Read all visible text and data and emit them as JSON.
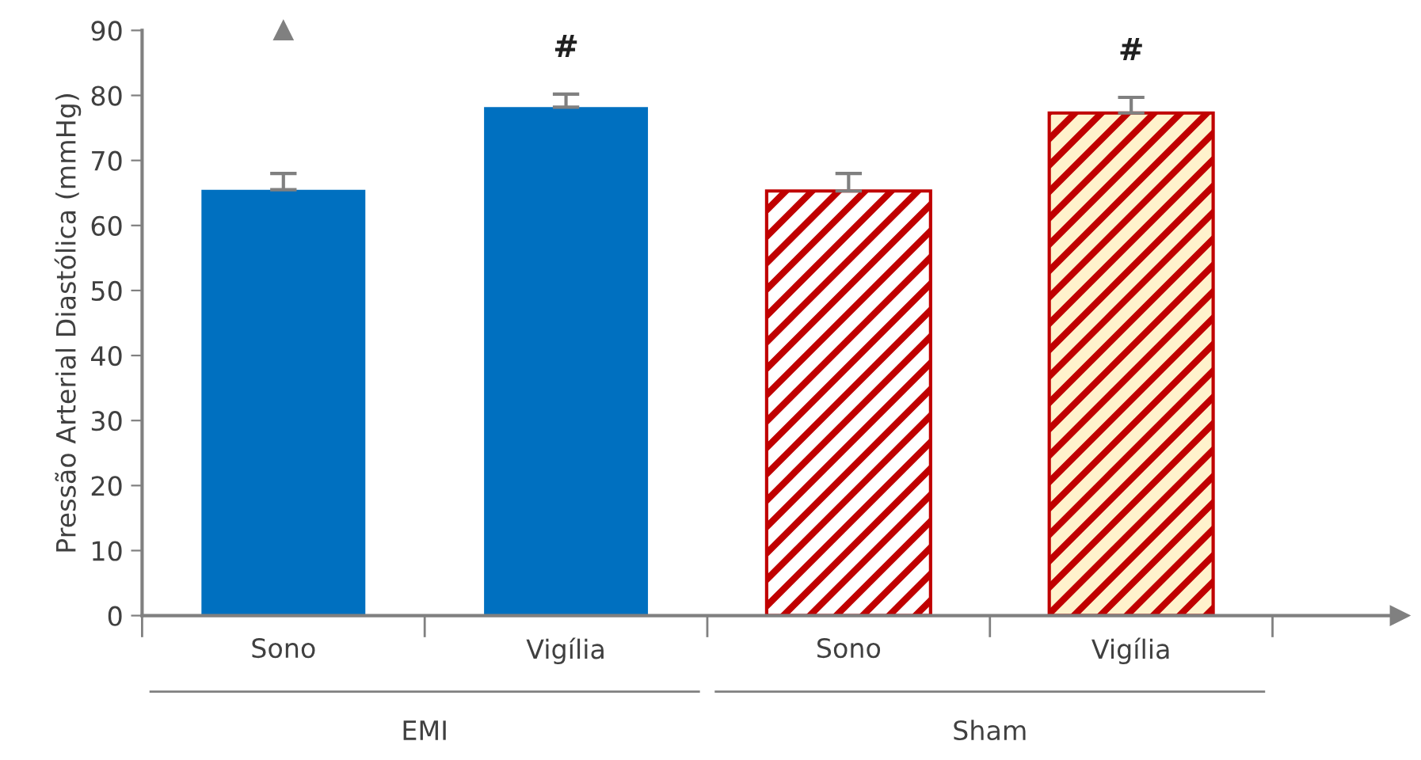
{
  "chart_data": {
    "type": "bar",
    "ylabel": "Pressão Arterial Diastólica (mmHg)",
    "categories": [
      "Sono",
      "Vigília",
      "Sono",
      "Vigília"
    ],
    "series": [
      {
        "color": "#0070c0",
        "values": [
          65.5,
          78.2,
          null,
          null
        ],
        "errors": [
          2.5,
          2.0,
          null,
          null
        ]
      },
      {
        "color": "#c00000",
        "values": [
          null,
          null,
          65.3,
          77.3
        ],
        "errors": [
          null,
          null,
          2.7,
          2.4
        ]
      }
    ],
    "colors": [
      "#0070c0",
      "#0070c0",
      "#ffffff",
      "#fff2cc"
    ],
    "annotations": [
      "#",
      "#",
      "EMI",
      "Sham"
    ],
    "ylim": [
      0,
      90
    ],
    "yticks": [
      0,
      10,
      20,
      30,
      40,
      50,
      60,
      70,
      80,
      90
    ],
    "grid": false
  }
}
